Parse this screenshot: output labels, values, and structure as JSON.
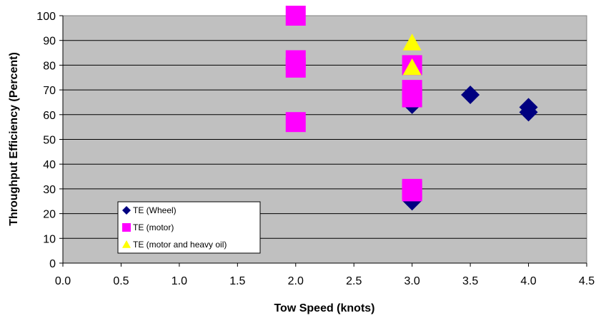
{
  "chart_data": {
    "type": "scatter",
    "xlabel": "Tow Speed (knots)",
    "ylabel": "Throughput Efficiency (Percent)",
    "xlim": [
      0,
      4.5
    ],
    "ylim": [
      0,
      100
    ],
    "xticks": [
      "0.0",
      "0.5",
      "1.0",
      "1.5",
      "2.0",
      "2.5",
      "3.0",
      "3.5",
      "4.0",
      "4.5"
    ],
    "yticks": [
      "0",
      "10",
      "20",
      "30",
      "40",
      "50",
      "60",
      "70",
      "80",
      "90",
      "100"
    ],
    "grid": true,
    "legend": "bottom-left",
    "plot_background": "#c0c0c0",
    "series": [
      {
        "name": "TE (Wheel)",
        "marker": "diamond",
        "color": "#000080",
        "points": [
          [
            3.0,
            25
          ],
          [
            3.0,
            64
          ],
          [
            3.5,
            68
          ],
          [
            4.0,
            63
          ],
          [
            4.0,
            61
          ]
        ]
      },
      {
        "name": "TE (motor)",
        "marker": "square",
        "color": "#ff00ff",
        "points": [
          [
            2.0,
            100
          ],
          [
            2.0,
            82
          ],
          [
            2.0,
            79
          ],
          [
            2.0,
            57
          ],
          [
            3.0,
            80
          ],
          [
            3.0,
            70
          ],
          [
            3.0,
            67
          ],
          [
            3.0,
            30
          ],
          [
            3.0,
            29
          ]
        ]
      },
      {
        "name": "TE (motor and heavy oil)",
        "marker": "triangle",
        "color": "#ffff00",
        "points": [
          [
            3.0,
            89
          ],
          [
            3.0,
            79
          ]
        ]
      }
    ]
  }
}
